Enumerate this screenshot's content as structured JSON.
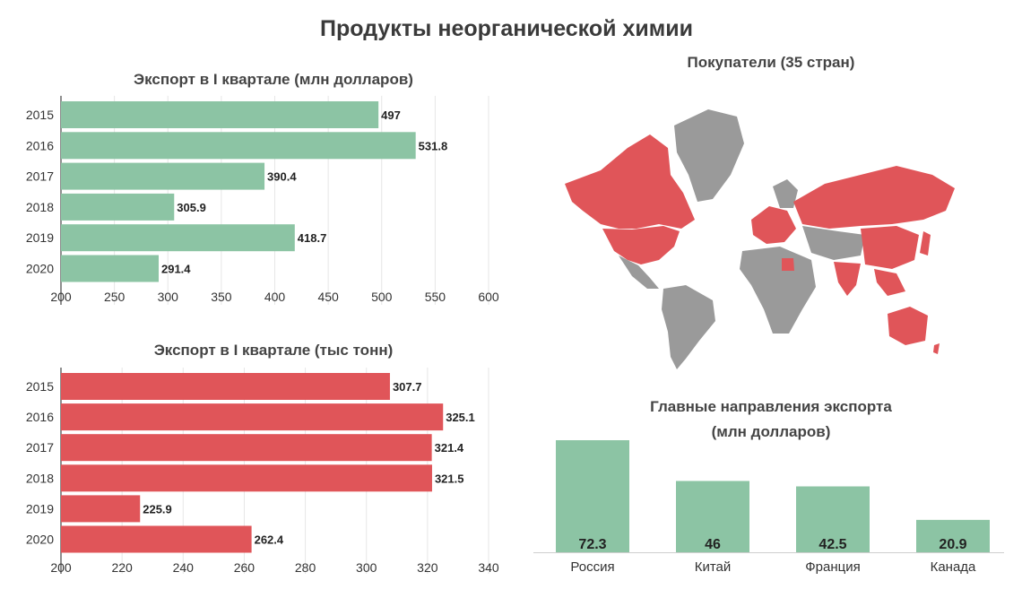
{
  "title": "Продукты неорганической химии",
  "colors": {
    "green": "#8cc4a4",
    "red": "#e05559",
    "gray": "#9a9a9a"
  },
  "chart_data": [
    {
      "type": "bar",
      "orientation": "horizontal",
      "title": "Экспорт в I квартале (млн долларов)",
      "categories": [
        "2015",
        "2016",
        "2017",
        "2018",
        "2019",
        "2020"
      ],
      "values": [
        497,
        531.8,
        390.4,
        305.9,
        418.7,
        291.4
      ],
      "value_labels": [
        "497",
        "531.8",
        "390.4",
        "305.9",
        "418.7",
        "291.4"
      ],
      "xlim": [
        200,
        600
      ],
      "ticks": [
        "200",
        "250",
        "300",
        "350",
        "400",
        "450",
        "500",
        "550",
        "600"
      ],
      "color": "#8cc4a4",
      "grid": true
    },
    {
      "type": "bar",
      "orientation": "horizontal",
      "title": "Экспорт в I квартале (тыс тонн)",
      "categories": [
        "2015",
        "2016",
        "2017",
        "2018",
        "2019",
        "2020"
      ],
      "values": [
        307.7,
        325.1,
        321.4,
        321.5,
        225.9,
        262.4
      ],
      "value_labels": [
        "307.7",
        "325.1",
        "321.4",
        "321.5",
        "225.9",
        "262.4"
      ],
      "xlim": [
        200,
        340
      ],
      "ticks": [
        "200",
        "220",
        "240",
        "260",
        "280",
        "300",
        "320",
        "340"
      ],
      "color": "#e05559",
      "grid": true
    },
    {
      "type": "bar",
      "orientation": "vertical",
      "title": "Главные направления экспорта",
      "subtitle": "(млн долларов)",
      "categories": [
        "Россия",
        "Китай",
        "Франция",
        "Канада"
      ],
      "values": [
        72.3,
        46,
        42.5,
        20.9
      ],
      "value_labels": [
        "72.3",
        "46",
        "42.5",
        "20.9"
      ],
      "ylim": [
        0,
        72.3
      ],
      "color": "#8cc4a4"
    }
  ],
  "map": {
    "title": "Покупатели (35 стран)",
    "buyer_color": "#e05559",
    "other_color": "#9a9a9a"
  }
}
